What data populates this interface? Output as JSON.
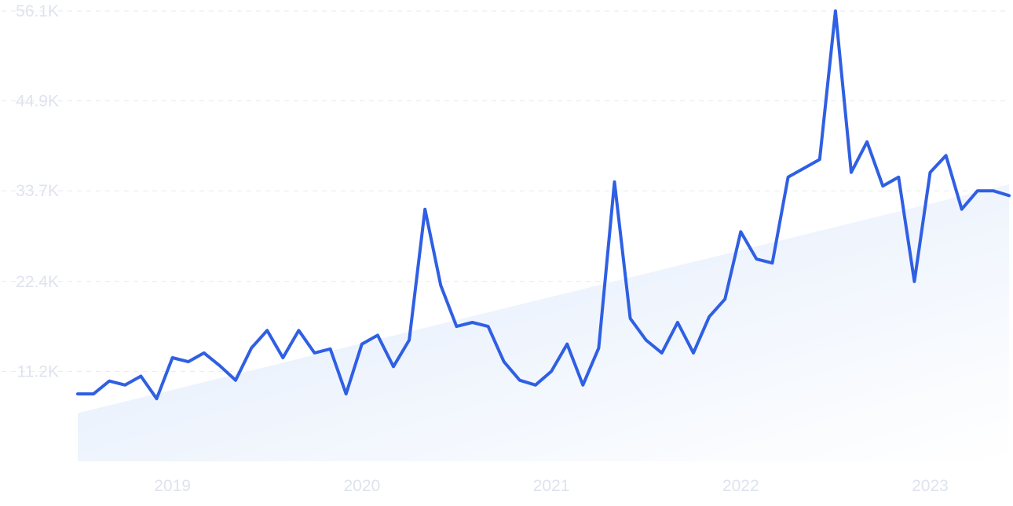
{
  "chart_data": {
    "type": "line",
    "title": "",
    "xlabel": "",
    "ylabel": "",
    "x_range": [
      "2018-07",
      "2023-06"
    ],
    "ylim": [
      0,
      56100
    ],
    "grid": true,
    "y_ticks": [
      {
        "value": 56100,
        "label": "56.1K"
      },
      {
        "value": 44900,
        "label": "44.9K"
      },
      {
        "value": 33700,
        "label": "33.7K"
      },
      {
        "value": 22400,
        "label": "22.4K"
      },
      {
        "value": 11200,
        "label": "11.2K"
      }
    ],
    "x_ticks": [
      {
        "value": "2019-01",
        "label": "2019"
      },
      {
        "value": "2020-01",
        "label": "2020"
      },
      {
        "value": "2021-01",
        "label": "2021"
      },
      {
        "value": "2022-01",
        "label": "2022"
      },
      {
        "value": "2023-01",
        "label": "2023"
      }
    ],
    "series": [
      {
        "color": "#2f5fe3",
        "x": [
          "2018-07",
          "2018-08",
          "2018-09",
          "2018-10",
          "2018-11",
          "2018-12",
          "2019-01",
          "2019-02",
          "2019-03",
          "2019-04",
          "2019-05",
          "2019-06",
          "2019-07",
          "2019-08",
          "2019-09",
          "2019-10",
          "2019-11",
          "2019-12",
          "2020-01",
          "2020-02",
          "2020-03",
          "2020-04",
          "2020-05",
          "2020-06",
          "2020-07",
          "2020-08",
          "2020-09",
          "2020-10",
          "2020-11",
          "2020-12",
          "2021-01",
          "2021-02",
          "2021-03",
          "2021-04",
          "2021-05",
          "2021-06",
          "2021-07",
          "2021-08",
          "2021-09",
          "2021-10",
          "2021-11",
          "2021-12",
          "2022-01",
          "2022-02",
          "2022-03",
          "2022-04",
          "2022-05",
          "2022-06",
          "2022-07",
          "2022-08",
          "2022-09",
          "2022-10",
          "2022-11",
          "2022-12",
          "2023-01",
          "2023-02",
          "2023-03",
          "2023-04",
          "2023-05",
          "2023-06"
        ],
        "values": [
          8400,
          8400,
          10000,
          9500,
          10600,
          7800,
          12900,
          12400,
          13500,
          11900,
          10100,
          14100,
          16300,
          12900,
          16300,
          13500,
          14000,
          8400,
          14600,
          15700,
          11800,
          15100,
          31400,
          21900,
          16800,
          17300,
          16800,
          12400,
          10100,
          9500,
          11200,
          14600,
          9500,
          14100,
          34800,
          17800,
          15100,
          13500,
          17300,
          13500,
          18000,
          20200,
          28600,
          25200,
          24700,
          35400,
          36500,
          37600,
          56100,
          36000,
          39800,
          34300,
          35400,
          22400,
          36000,
          38100,
          31400,
          33700,
          33700,
          33100
        ]
      }
    ],
    "trend": {
      "color": "#e3eefb",
      "x": [
        "2018-07",
        "2023-06"
      ],
      "values": [
        6000,
        34500
      ]
    }
  }
}
